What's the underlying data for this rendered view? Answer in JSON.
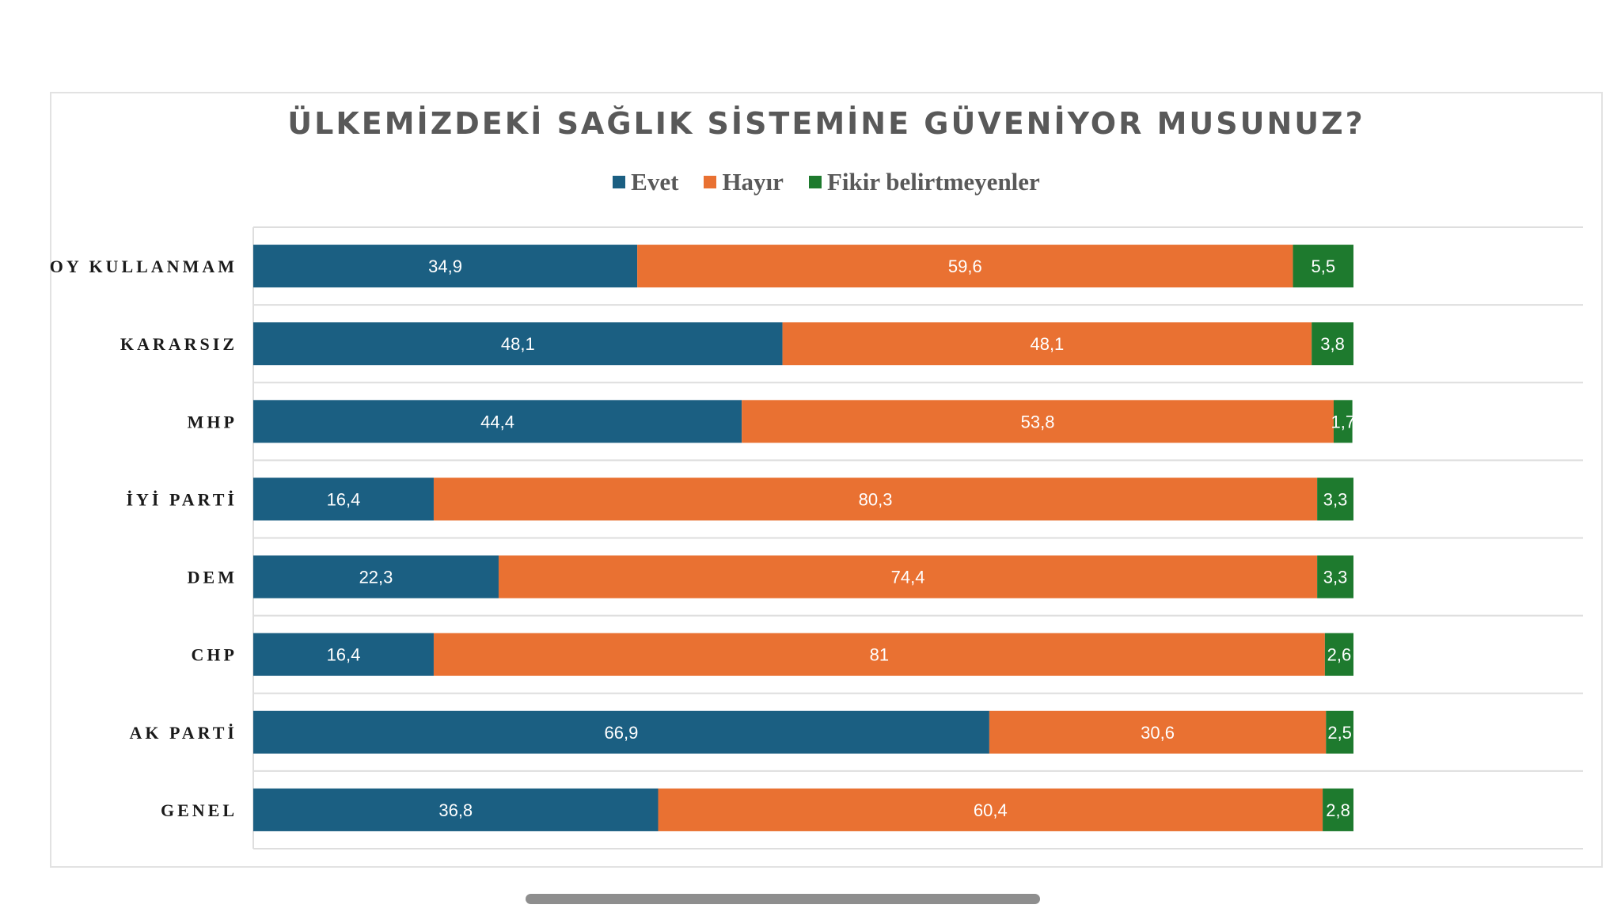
{
  "chart_data": {
    "type": "bar",
    "orientation": "horizontal",
    "stacked": true,
    "title": "ÜLKEMİZDEKİ SAĞLIK SİSTEMİNE GÜVENİYOR MUSUNUZ?",
    "categories": [
      "OY KULLANMAM",
      "KARARSIZ",
      "MHP",
      "İYİ PARTİ",
      "DEM",
      "CHP",
      "AK PARTİ",
      "GENEL"
    ],
    "series": [
      {
        "name": "Evet",
        "color": "#1b5f82",
        "values": [
          34.9,
          48.1,
          44.4,
          16.4,
          22.3,
          16.4,
          66.9,
          36.8
        ],
        "labels": [
          "34,9",
          "48,1",
          "44,4",
          "16,4",
          "22,3",
          "16,4",
          "66,9",
          "36,8"
        ]
      },
      {
        "name": "Hayır",
        "color": "#e97132",
        "values": [
          59.6,
          48.1,
          53.8,
          80.3,
          74.4,
          81,
          30.6,
          60.4
        ],
        "labels": [
          "59,6",
          "48,1",
          "53,8",
          "80,3",
          "74,4",
          "81",
          "30,6",
          "60,4"
        ]
      },
      {
        "name": "Fikir belirtmeyenler",
        "color": "#1e7a2e",
        "values": [
          5.5,
          3.8,
          1.7,
          3.3,
          3.3,
          2.6,
          2.5,
          2.8
        ],
        "labels": [
          "5,5",
          "3,8",
          "1,7",
          "3,3",
          "3,3",
          "2,6",
          "2,5",
          "2,8"
        ]
      }
    ],
    "xlim": [
      0,
      100
    ],
    "grid": true,
    "legend_position": "top"
  },
  "ui": {
    "scrollbar": "horizontal-scrollbar"
  }
}
